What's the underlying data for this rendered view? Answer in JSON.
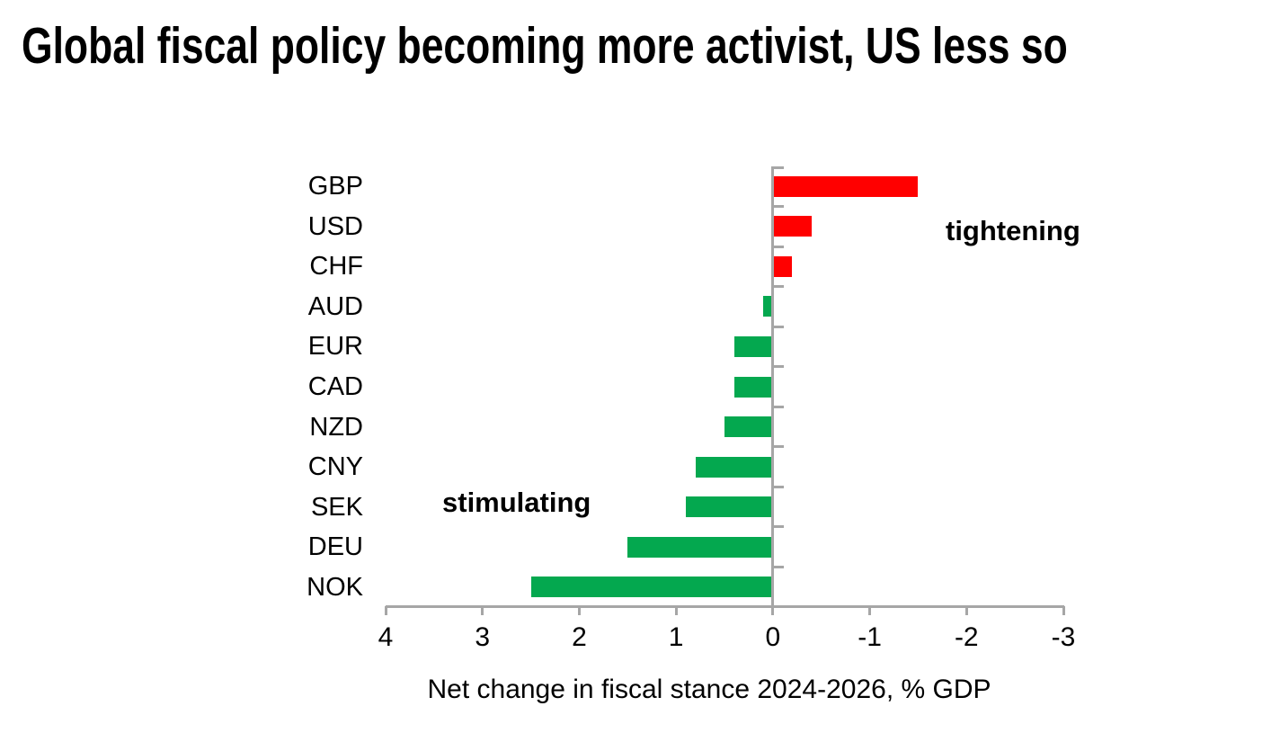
{
  "title": "Global fiscal policy becoming more activist, US less so",
  "chart_data": {
    "type": "bar",
    "orientation": "horizontal",
    "title": "Global fiscal policy becoming more activist, US less so",
    "categories": [
      "GBP",
      "USD",
      "CHF",
      "AUD",
      "EUR",
      "CAD",
      "NZD",
      "CNY",
      "SEK",
      "DEU",
      "NOK"
    ],
    "values": [
      -1.5,
      -0.4,
      -0.2,
      0.1,
      0.4,
      0.4,
      0.5,
      0.8,
      0.9,
      1.5,
      2.5
    ],
    "xlabel": "Net change in fiscal stance 2024-2026, % GDP",
    "x_ticks": [
      4,
      3,
      2,
      1,
      0,
      -1,
      -2,
      -3
    ],
    "xlim": [
      4,
      -3
    ],
    "x_axis_reversed": true,
    "grid": false,
    "legend": "none",
    "colors": {
      "positive_bar": "#04a84f",
      "negative_bar": "#ff0000",
      "axis": "#a6a6a6",
      "text": "#000000"
    },
    "annotations": {
      "tightening": "tightening",
      "stimulating": "stimulating"
    }
  }
}
